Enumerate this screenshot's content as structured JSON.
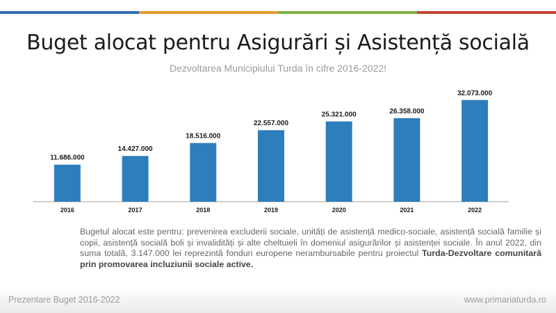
{
  "slide": {
    "title": "Buget alocat pentru Asigurări și Asistență socială",
    "subtitle": "Dezvoltarea Municipiului Turda în cifre 2016-2022!",
    "top_bar_colors": [
      "#2f6db5",
      "#e89a2c",
      "#7fb244",
      "#c64536"
    ],
    "description_plain": "Bugetul alocat este pentru: prevenirea excluderii sociale, unități de asistență medico-sociale, asistență socială familie și copii, asistență socială boli și invalidități și alte cheltuieli în domeniul asigurărilor și asistenței sociale. În anul 2022, din suma totală, 3.147.000 lei reprezintă fonduri europene nerambursabile pentru proiectul ",
    "description_bold": "Turda-Dezvoltare comunitară prin promovarea incluziunii sociale active.",
    "footer_left": "Prezentare Buget 2016-2022",
    "footer_right": "www.primariaturda.ro"
  },
  "chart_data": {
    "type": "bar",
    "categories": [
      "2016",
      "2017",
      "2018",
      "2019",
      "2020",
      "2021",
      "2022"
    ],
    "values": [
      11686000,
      14427000,
      18516000,
      22557000,
      25321000,
      26358000,
      32073000
    ],
    "value_labels": [
      "11.686.000",
      "14.427.000",
      "18.516.000",
      "22.557.000",
      "25.321.000",
      "26.358.000",
      "32.073.000"
    ],
    "bar_color": "#2e7ebc",
    "ylim": [
      0,
      34000000
    ],
    "grid": false,
    "legend": "none"
  }
}
